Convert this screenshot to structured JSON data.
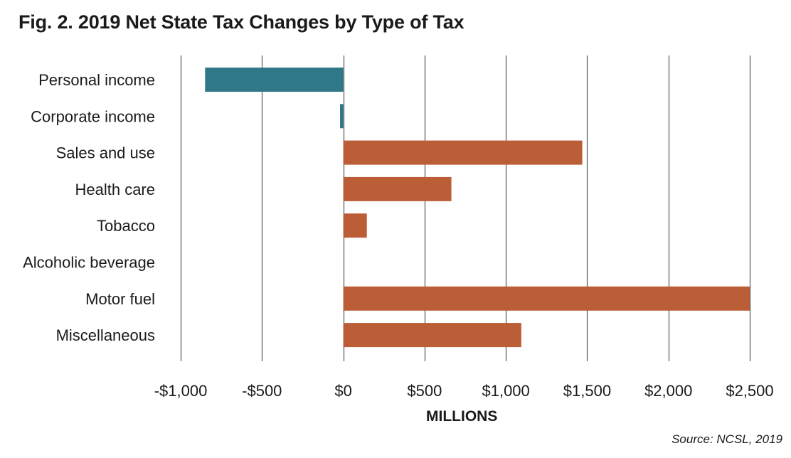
{
  "chart_data": {
    "type": "bar",
    "orientation": "horizontal",
    "title": "Fig. 2. 2019 Net State Tax Changes by Type of Tax",
    "xlabel": "MILLIONS",
    "ylabel": "",
    "source": "Source:  NCSL, 2019",
    "categories": [
      "Personal income",
      "Corporate income",
      "Sales and use",
      "Health care",
      "Tobacco",
      "Alcoholic beverage",
      "Motor fuel",
      "Miscellaneous"
    ],
    "values": [
      -850,
      -20,
      1470,
      665,
      145,
      0,
      2500,
      1095
    ],
    "xlim": [
      -1000,
      2500
    ],
    "ticks": [
      -1000,
      -500,
      0,
      500,
      1000,
      1500,
      2000,
      2500
    ],
    "tick_labels": [
      "-$1,000",
      "-$500",
      "$0",
      "$500",
      "$1,000",
      "$1,500",
      "$2,000",
      "$2,500"
    ],
    "grid": true,
    "colors": {
      "negative": "#2f7889",
      "positive": "#bb5e37",
      "grid": "#555555"
    }
  }
}
